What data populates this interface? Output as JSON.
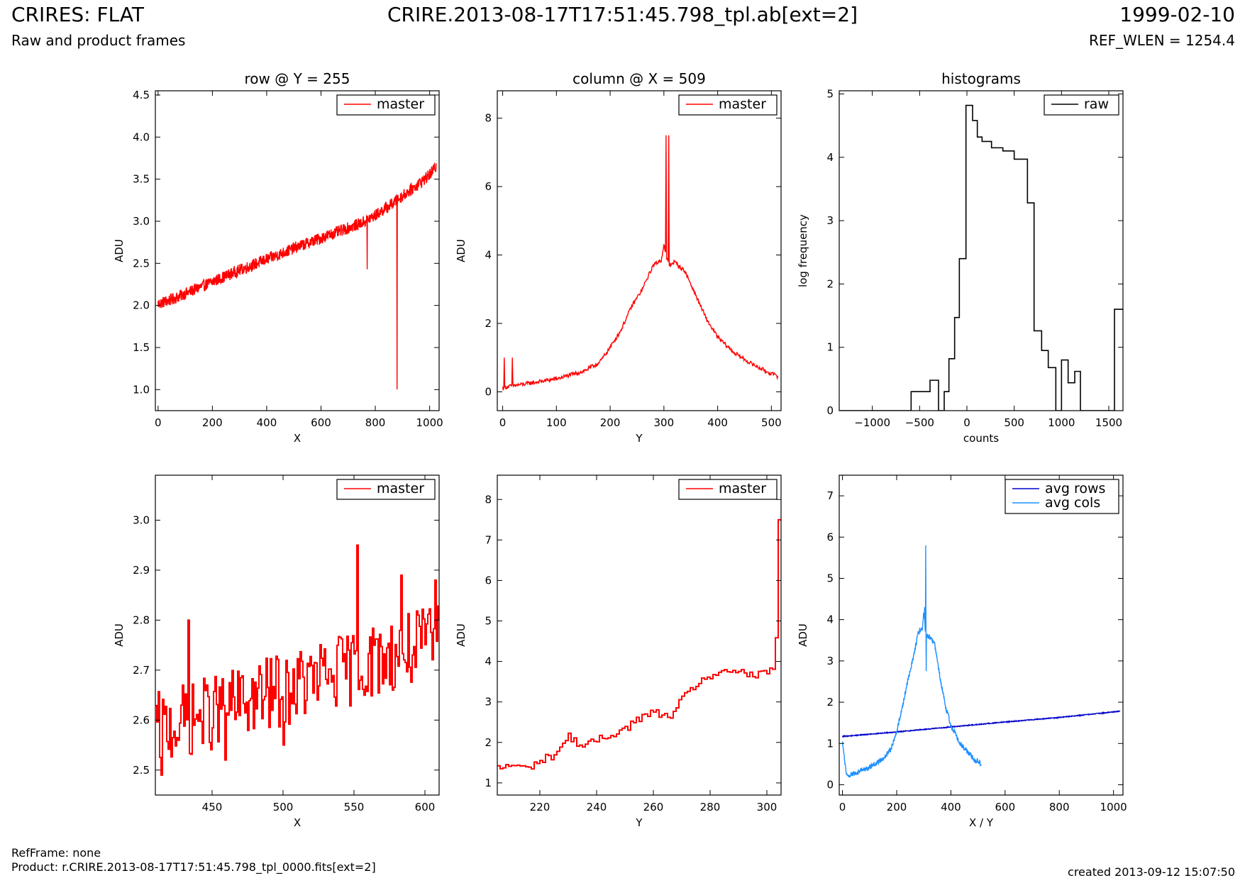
{
  "header": {
    "title": "CRIRES: FLAT",
    "subtitle": "Raw and product frames",
    "filename": "CRIRE.2013-08-17T17:51:45.798_tpl.ab[ext=2]",
    "date": "1999-02-10",
    "ref_wlen": "REF_WLEN = 1254.4"
  },
  "footer": {
    "ref_frame": "RefFrame: none",
    "product": "Product: r.CRIRE.2013-08-17T17:51:45.798_tpl_0000.fits[ext=2]",
    "created": "created 2013-09-12 15:07:50"
  },
  "colors": {
    "master": "#ff0000",
    "raw": "#000000",
    "avg_rows": "#0000cc",
    "avg_cols": "#1e90ff"
  },
  "chart_data": [
    {
      "type": "line",
      "title": "row @ Y = 255",
      "xlabel": "X",
      "ylabel": "ADU",
      "xlim": [
        -10,
        1035
      ],
      "ylim": [
        0.75,
        4.55
      ],
      "xticks": [
        0,
        200,
        400,
        600,
        800,
        1000
      ],
      "yticks": [
        1.0,
        1.5,
        2.0,
        2.5,
        3.0,
        3.5,
        4.0,
        4.5
      ],
      "legend": "top-right",
      "series": [
        {
          "name": "master",
          "color": "#ff0000",
          "noise": 0.07,
          "x": [
            0,
            50,
            100,
            150,
            200,
            250,
            300,
            350,
            400,
            450,
            500,
            550,
            600,
            650,
            700,
            750,
            800,
            850,
            900,
            950,
            1000,
            1024
          ],
          "y": [
            2.02,
            2.07,
            2.14,
            2.21,
            2.28,
            2.35,
            2.42,
            2.48,
            2.55,
            2.61,
            2.68,
            2.74,
            2.8,
            2.86,
            2.92,
            2.98,
            3.07,
            3.18,
            3.3,
            3.42,
            3.55,
            3.65
          ],
          "spikes": [
            {
              "x": 770,
              "y": 2.43
            },
            {
              "x": 880,
              "y": 1.0
            }
          ]
        }
      ]
    },
    {
      "type": "line",
      "title": "column @ X = 509",
      "xlabel": "Y",
      "ylabel": "ADU",
      "xlim": [
        -10,
        518
      ],
      "ylim": [
        -0.55,
        8.8
      ],
      "xticks": [
        0,
        100,
        200,
        300,
        400,
        500
      ],
      "yticks": [
        0,
        2,
        4,
        6,
        8
      ],
      "legend": "top-right",
      "series": [
        {
          "name": "master",
          "color": "#ff0000",
          "noise": 0.06,
          "x": [
            0,
            20,
            50,
            100,
            150,
            180,
            200,
            220,
            240,
            260,
            280,
            295,
            300,
            305,
            310,
            320,
            340,
            360,
            380,
            400,
            430,
            460,
            490,
            512
          ],
          "y": [
            0.12,
            0.18,
            0.25,
            0.38,
            0.6,
            0.85,
            1.3,
            1.8,
            2.5,
            3.0,
            3.7,
            3.85,
            4.3,
            3.9,
            3.7,
            3.8,
            3.5,
            2.8,
            2.1,
            1.6,
            1.15,
            0.85,
            0.6,
            0.45
          ],
          "spikes": [
            {
              "x": 3,
              "y": 1.0
            },
            {
              "x": 18,
              "y": 1.0
            },
            {
              "x": 304,
              "y": 7.5
            },
            {
              "x": 309,
              "y": 7.5
            }
          ]
        }
      ]
    },
    {
      "type": "step",
      "title": "histograms",
      "xlabel": "counts",
      "ylabel": "log frequency",
      "xlim": [
        -1350,
        1650
      ],
      "ylim": [
        0,
        5.05
      ],
      "xticks": [
        -1000,
        -500,
        0,
        500,
        1000,
        1500
      ],
      "xticklabels": [
        "−1000",
        "−500",
        "0",
        "500",
        "1000",
        "1500"
      ],
      "yticks": [
        0,
        1,
        2,
        3,
        4,
        5
      ],
      "legend": "top-right",
      "series": [
        {
          "name": "raw",
          "color": "#000000",
          "edges": [
            -1350,
            -590,
            -490,
            -390,
            -300,
            -240,
            -190,
            -130,
            -80,
            -10,
            60,
            110,
            160,
            260,
            380,
            500,
            640,
            710,
            790,
            860,
            940,
            1000,
            1070,
            1140,
            1200,
            1420,
            1560,
            1650
          ],
          "values": [
            0,
            0.3,
            0.3,
            0.48,
            0,
            0.3,
            0.82,
            1.47,
            2.4,
            4.82,
            4.58,
            4.32,
            4.25,
            4.15,
            4.1,
            3.97,
            3.28,
            1.26,
            0.95,
            0.68,
            0,
            0.8,
            0.44,
            0.62,
            0,
            0,
            1.6
          ]
        }
      ]
    },
    {
      "type": "line",
      "xlabel": "X",
      "ylabel": "ADU",
      "xlim": [
        410,
        610
      ],
      "ylim": [
        2.45,
        3.09
      ],
      "xticks": [
        450,
        500,
        550,
        600
      ],
      "yticks": [
        2.5,
        2.6,
        2.7,
        2.8,
        2.9,
        3.0
      ],
      "legend": "top-right",
      "series": [
        {
          "name": "master",
          "color": "#ff0000",
          "step": 1,
          "x": [
            410,
            610
          ],
          "y_start": 2.58,
          "y_end": 2.76,
          "noise": 0.075,
          "spikes": [
            {
              "x": 414,
              "y": 2.49
            },
            {
              "x": 433,
              "y": 2.8
            },
            {
              "x": 459,
              "y": 2.52
            },
            {
              "x": 500,
              "y": 2.55
            },
            {
              "x": 552,
              "y": 2.95
            },
            {
              "x": 583,
              "y": 2.89
            },
            {
              "x": 607,
              "y": 2.88
            }
          ]
        }
      ]
    },
    {
      "type": "line",
      "xlabel": "Y",
      "ylabel": "ADU",
      "xlim": [
        205,
        305
      ],
      "ylim": [
        0.7,
        8.6
      ],
      "xticks": [
        220,
        240,
        260,
        280,
        300
      ],
      "yticks": [
        1,
        2,
        3,
        4,
        5,
        6,
        7,
        8
      ],
      "legend": "top-right",
      "series": [
        {
          "name": "master",
          "color": "#ff0000",
          "step": 1,
          "x": [
            205,
            210,
            215,
            220,
            225,
            230,
            235,
            240,
            245,
            250,
            255,
            260,
            265,
            270,
            275,
            280,
            285,
            290,
            295,
            300,
            302,
            303,
            304,
            305
          ],
          "y": [
            1.35,
            1.45,
            1.35,
            1.55,
            1.7,
            2.15,
            1.9,
            2.05,
            2.2,
            2.35,
            2.6,
            2.75,
            2.6,
            3.05,
            3.45,
            3.65,
            3.7,
            3.8,
            3.6,
            3.75,
            3.78,
            4.6,
            7.5,
            7.5
          ],
          "noise": 0.1
        }
      ]
    },
    {
      "type": "line",
      "xlabel": "X / Y",
      "ylabel": "ADU",
      "xlim": [
        -12,
        1035
      ],
      "ylim": [
        -0.25,
        7.5
      ],
      "xticks": [
        0,
        200,
        400,
        600,
        800,
        1000
      ],
      "yticks": [
        0,
        1,
        2,
        3,
        4,
        5,
        6,
        7
      ],
      "legend": "top-right",
      "series": [
        {
          "name": "avg rows",
          "color": "#0000cc",
          "noise": 0.01,
          "x": [
            0,
            200,
            400,
            600,
            800,
            1024
          ],
          "y": [
            1.17,
            1.28,
            1.4,
            1.52,
            1.63,
            1.78
          ]
        },
        {
          "name": "avg cols",
          "color": "#1e90ff",
          "noise": 0.06,
          "x": [
            0,
            15,
            50,
            100,
            150,
            180,
            200,
            220,
            240,
            260,
            280,
            295,
            300,
            305,
            310,
            320,
            340,
            360,
            380,
            400,
            430,
            460,
            490,
            512
          ],
          "y": [
            1.0,
            0.22,
            0.28,
            0.42,
            0.62,
            0.88,
            1.3,
            1.85,
            2.5,
            3.05,
            3.7,
            3.8,
            4.2,
            3.8,
            3.6,
            3.6,
            3.4,
            2.6,
            1.9,
            1.45,
            1.05,
            0.8,
            0.6,
            0.52
          ],
          "spikes": [
            {
              "x": 307,
              "y": 5.8
            },
            {
              "x": 303,
              "y": 4.3
            },
            {
              "x": 309,
              "y": 2.75
            }
          ]
        }
      ]
    }
  ]
}
